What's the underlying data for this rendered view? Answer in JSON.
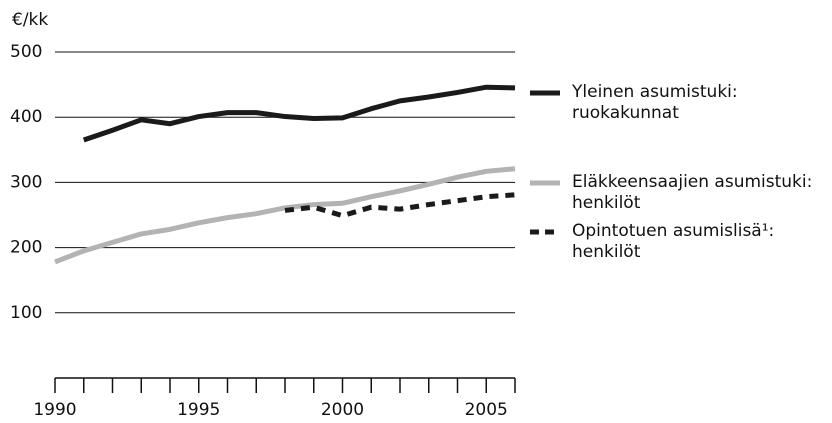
{
  "chart_data": {
    "type": "line",
    "y_label": "€/kk",
    "x": [
      1990,
      1991,
      1992,
      1993,
      1994,
      1995,
      1996,
      1997,
      1998,
      1999,
      2000,
      2001,
      2002,
      2003,
      2004,
      2005,
      2006
    ],
    "series": [
      {
        "name": "Yleinen asumistuki:\nruokakunnat",
        "color": "#1a1a1a",
        "dash": false,
        "values": [
          null,
          365,
          380,
          396,
          390,
          401,
          407,
          407,
          401,
          398,
          399,
          413,
          425,
          431,
          438,
          446,
          445
        ]
      },
      {
        "name": "Eläkkeensaajien asumistuki:\nhenkilöt",
        "color": "#b3b3b3",
        "dash": false,
        "values": [
          178,
          195,
          208,
          221,
          228,
          238,
          246,
          252,
          261,
          266,
          268,
          278,
          287,
          297,
          308,
          317,
          321
        ]
      },
      {
        "name": "Opintotuen asumislisä¹:\nhenkilöt",
        "color": "#1a1a1a",
        "dash": true,
        "values": [
          null,
          null,
          null,
          null,
          null,
          null,
          null,
          null,
          257,
          262,
          249,
          262,
          259,
          266,
          272,
          278,
          281
        ]
      }
    ],
    "xlim": [
      1990,
      2006
    ],
    "xticks": [
      1990,
      1995,
      2000,
      2005
    ],
    "xminorticks": [
      1991,
      1992,
      1993,
      1994,
      1996,
      1997,
      1998,
      1999,
      2001,
      2002,
      2003,
      2004,
      2006
    ],
    "ylim": [
      0,
      500
    ],
    "yticks": [
      100,
      200,
      300,
      400,
      500
    ],
    "grid": true
  }
}
